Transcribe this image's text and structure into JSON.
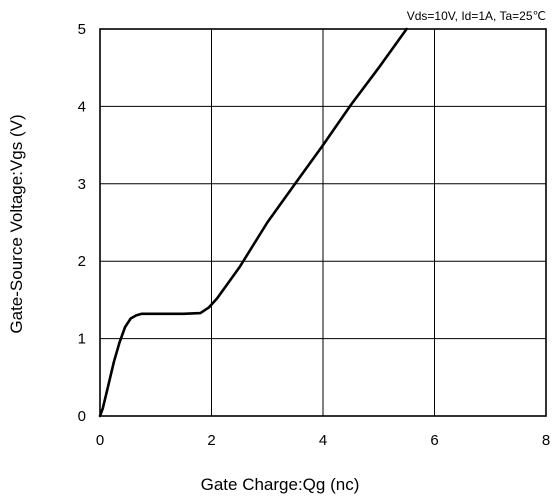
{
  "chart_data": {
    "type": "line",
    "annotation": "Vds=10V, Id=1A, Ta=25℃",
    "xlabel": "Gate Charge:Qg  (nc)",
    "ylabel": "Gate-Source Voltage:Vgs  (V)",
    "xlim": [
      0,
      8
    ],
    "ylim": [
      0,
      5
    ],
    "x_ticks": [
      "0",
      "2",
      "4",
      "6",
      "8"
    ],
    "y_ticks": [
      "0",
      "1",
      "2",
      "3",
      "4",
      "5"
    ],
    "grid": true,
    "series": [
      {
        "x": [
          0,
          0.05,
          0.15,
          0.25,
          0.35,
          0.45,
          0.55,
          0.65,
          0.75,
          1.0,
          1.5,
          1.8,
          1.95,
          2.1,
          2.5,
          3.0,
          3.5,
          4.0,
          4.5,
          5.0,
          5.5
        ],
        "y": [
          0,
          0.1,
          0.4,
          0.7,
          0.95,
          1.15,
          1.26,
          1.3,
          1.32,
          1.32,
          1.32,
          1.33,
          1.4,
          1.52,
          1.92,
          2.5,
          3.0,
          3.5,
          4.02,
          4.5,
          5.0
        ],
        "color": "#000000"
      }
    ]
  }
}
